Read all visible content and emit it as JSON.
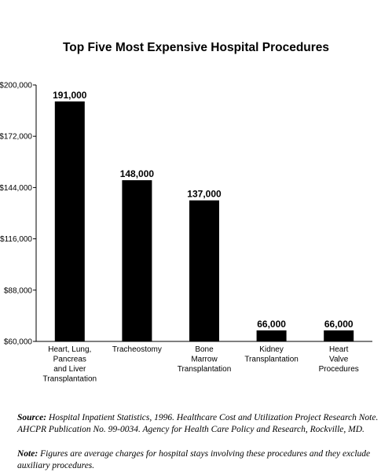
{
  "chart_data": {
    "type": "bar",
    "title": "Top Five Most Expensive Hospital Procedures",
    "xlabel": "",
    "ylabel": "",
    "categories": [
      [
        "Heart, Lung,",
        "Pancreas",
        "and Liver",
        "Transplantation"
      ],
      [
        "Tracheostomy"
      ],
      [
        "Bone",
        "Marrow",
        "Transplantation"
      ],
      [
        "Kidney",
        "Transplantation"
      ],
      [
        "Heart",
        "Valve",
        "Procedures"
      ]
    ],
    "values": [
      191000,
      148000,
      137000,
      66000,
      66000
    ],
    "value_labels": [
      "191,000",
      "148,000",
      "137,000",
      "66,000",
      "66,000"
    ],
    "ylim": [
      60000,
      200000
    ],
    "yticks": [
      60000,
      88000,
      116000,
      144000,
      172000,
      200000
    ],
    "ytick_labels": [
      "$60,000",
      "$88,000",
      "$116,000",
      "$144,000",
      "$172,000",
      "$200,000"
    ],
    "bar_color": "#000000",
    "grid": false,
    "legend": "none"
  },
  "notes": {
    "source_label": "Source:",
    "source_text": "Hospital Inpatient Statistics, 1996. Healthcare Cost and Utilization Project Research Note. AHCPR Publication No. 99-0034. Agency for Health Care Policy and Research, Rockville, MD.",
    "note_label": "Note:",
    "note_text": "Figures are average charges for hospital stays involving these procedures and they exclude auxiliary procedures."
  }
}
